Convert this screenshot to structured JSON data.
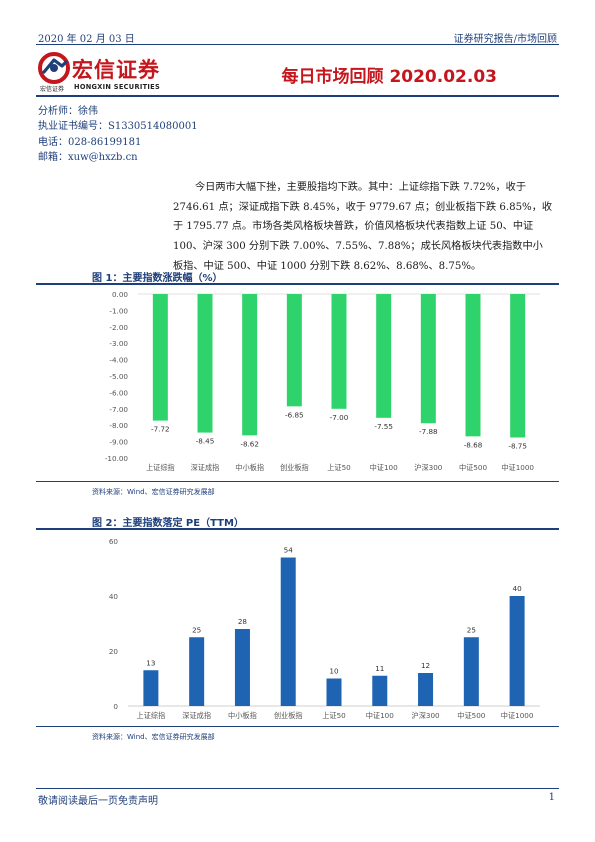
{
  "header": {
    "date": "2020 年 02 月 03 日",
    "report_type": "证券研究报告/市场回顾",
    "logo_cn": "宏信证券",
    "logo_sub_cn": "宏信证券",
    "logo_sub_en": "HONGXIN SECURITIES",
    "title": "每日市场回顾 2020.02.03"
  },
  "analyst": {
    "name_line": "分析师：徐伟",
    "cert_line": "执业证书编号：S1330514080001",
    "phone_line": "电话：028-86199181",
    "email_line": "邮箱：xuw@hxzb.cn"
  },
  "paragraph": {
    "lines": [
      "今日两市大幅下挫，主要股指均下跌。其中：上证综指下跌 7.72%，收于",
      "2746.61 点；深证成指下跌 8.45%，收于 9779.67 点；创业板指下跌 6.85%，收",
      "于 1795.77 点。市场各类风格板块普跌，价值风格板块代表指数上证 50、中证",
      "100、沪深 300 分别下跌 7.00%、7.55%、7.88%；成长风格板块代表指数中小",
      "板指、中证 500、中证 1000 分别下跌 8.62%、8.68%、8.75%。"
    ]
  },
  "figure1": {
    "caption": "图 1：主要指数涨跌幅（%）",
    "source": "资料来源：Wind、宏信证券研究发展部"
  },
  "figure2": {
    "caption": "图 2：主要指数落定 PE（TTM）",
    "source": "资料来源：Wind、宏信证券研究发展部"
  },
  "footer": {
    "note": "敬请阅读最后一页免责声明",
    "page": "1"
  },
  "chart_data": [
    {
      "type": "bar",
      "title": "",
      "categories": [
        "上证综指",
        "深证成指",
        "中小板指",
        "创业板指",
        "上证50",
        "中证100",
        "沪深300",
        "中证500",
        "中证1000"
      ],
      "values": [
        -7.72,
        -8.45,
        -8.62,
        -6.85,
        -7.0,
        -7.55,
        -7.88,
        -8.68,
        -8.75
      ],
      "value_labels": [
        "-7.72",
        "-8.45",
        "-8.62",
        "-6.85",
        "-7.00",
        "-7.55",
        "-7.88",
        "-8.68",
        "-8.75"
      ],
      "ylim": [
        -10,
        0
      ],
      "yticks": [
        "0.00",
        "-1.00",
        "-2.00",
        "-3.00",
        "-4.00",
        "-5.00",
        "-6.00",
        "-7.00",
        "-8.00",
        "-9.00",
        "-10.00"
      ],
      "grid": false,
      "color": "#2fd36b"
    },
    {
      "type": "bar",
      "title": "",
      "categories": [
        "上证综指",
        "深证成指",
        "中小板指",
        "创业板指",
        "上证50",
        "中证100",
        "沪深300",
        "中证500",
        "中证1000"
      ],
      "values": [
        13,
        25,
        28,
        54,
        10,
        11,
        12,
        25,
        40
      ],
      "value_labels": [
        "13",
        "25",
        "28",
        "54",
        "10",
        "11",
        "12",
        "25",
        "40"
      ],
      "ylim": [
        0,
        60
      ],
      "yticks": [
        "60",
        "40",
        "20",
        "0"
      ],
      "grid": false,
      "color": "#1f63b3"
    }
  ]
}
